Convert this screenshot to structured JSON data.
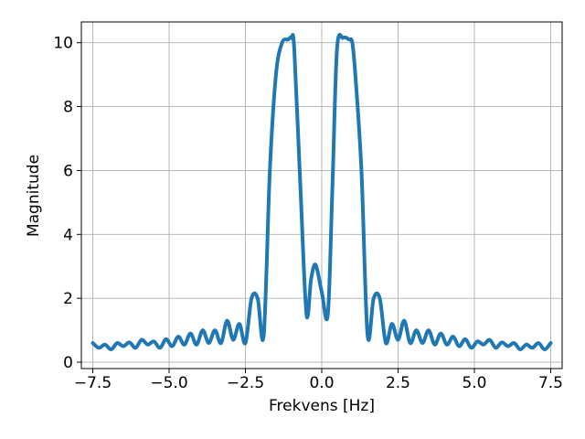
{
  "chart_data": {
    "type": "line",
    "title": "",
    "xlabel": "Frekvens [Hz]",
    "ylabel": "Magnitude",
    "xlim": [
      -7.875,
      7.875
    ],
    "ylim": [
      -0.2,
      10.65
    ],
    "grid": true,
    "x_ticks": [
      -7.5,
      -5.0,
      -2.5,
      0.0,
      2.5,
      5.0,
      7.5
    ],
    "x_tick_labels": [
      "−7.5",
      "−5.0",
      "−2.5",
      "0.0",
      "2.5",
      "5.0",
      "7.5"
    ],
    "y_ticks": [
      0,
      2,
      4,
      6,
      8,
      10
    ],
    "y_tick_labels": [
      "0",
      "2",
      "4",
      "6",
      "8",
      "10"
    ],
    "series_color": "#1f77b4",
    "series": [
      {
        "x": [
          -7.5,
          -7.3,
          -7.1,
          -6.9,
          -6.7,
          -6.5,
          -6.3,
          -6.1,
          -5.9,
          -5.7,
          -5.5,
          -5.3,
          -5.1,
          -4.9,
          -4.7,
          -4.5,
          -4.3,
          -4.1,
          -3.9,
          -3.7,
          -3.5,
          -3.3,
          -3.1,
          -2.9,
          -2.7,
          -2.5,
          -2.3,
          -2.1,
          -1.9,
          -1.7,
          -1.5,
          -1.3,
          -1.1,
          -1.0,
          -0.9,
          -0.7,
          -0.5,
          -0.35,
          -0.2,
          0.0,
          0.2,
          0.35,
          0.5,
          0.7,
          0.9,
          1.0,
          1.1,
          1.3,
          1.5,
          1.7,
          1.9,
          2.1,
          2.3,
          2.5,
          2.7,
          2.9,
          3.1,
          3.3,
          3.5,
          3.7,
          3.9,
          4.1,
          4.3,
          4.5,
          4.7,
          4.9,
          5.1,
          5.3,
          5.5,
          5.7,
          5.9,
          6.1,
          6.3,
          6.5,
          6.7,
          6.9,
          7.1,
          7.3,
          7.5
        ],
        "y": [
          0.6,
          0.45,
          0.55,
          0.4,
          0.6,
          0.5,
          0.62,
          0.45,
          0.7,
          0.55,
          0.65,
          0.45,
          0.72,
          0.5,
          0.8,
          0.55,
          0.9,
          0.55,
          1.0,
          0.6,
          1.0,
          0.6,
          1.3,
          0.7,
          1.2,
          0.6,
          2.0,
          2.0,
          0.85,
          6.0,
          9.0,
          10.0,
          10.1,
          10.15,
          9.8,
          5.5,
          1.5,
          2.6,
          3.05,
          2.2,
          1.5,
          5.5,
          9.8,
          10.15,
          10.1,
          10.0,
          9.0,
          6.0,
          0.85,
          2.0,
          2.0,
          0.6,
          1.2,
          0.7,
          1.3,
          0.6,
          1.0,
          0.6,
          1.0,
          0.55,
          0.9,
          0.55,
          0.8,
          0.5,
          0.72,
          0.45,
          0.65,
          0.55,
          0.7,
          0.45,
          0.62,
          0.5,
          0.6,
          0.4,
          0.55,
          0.45,
          0.6,
          0.4,
          0.6
        ]
      }
    ]
  }
}
